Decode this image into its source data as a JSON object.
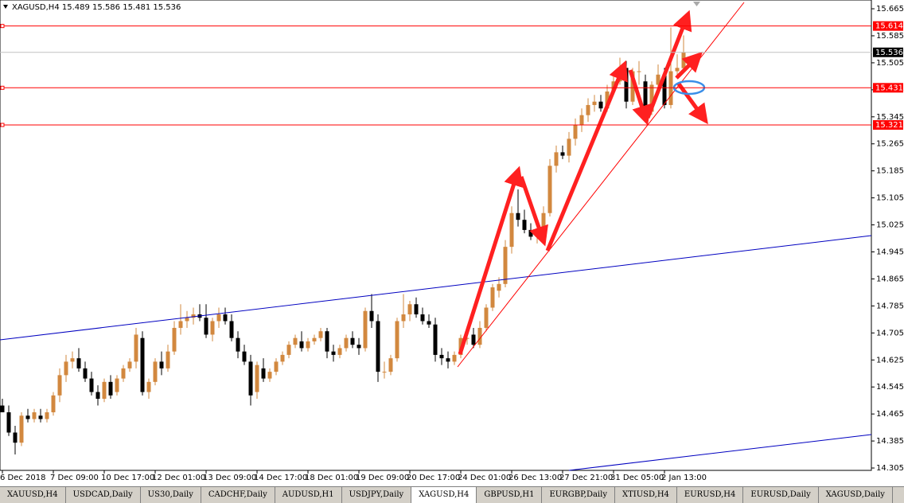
{
  "chart_data": {
    "type": "candlestick",
    "title": "XAGUSD,H4  15.489 15.586 15.481 15.536",
    "categories": [
      "6 Dec 2018",
      null,
      null,
      null,
      null,
      null,
      null,
      null,
      "7 Dec 09:00",
      null,
      null,
      null,
      null,
      null,
      null,
      null,
      "10 Dec 17:00",
      null,
      null,
      null,
      null,
      null,
      null,
      null,
      "12 Dec 01:00",
      null,
      null,
      null,
      null,
      null,
      null,
      null,
      "13 Dec 09:00",
      null,
      null,
      null,
      null,
      null,
      null,
      null,
      "14 Dec 17:00",
      null,
      null,
      null,
      null,
      null,
      null,
      null,
      "18 Dec 01:00",
      null,
      null,
      null,
      null,
      null,
      null,
      null,
      "19 Dec 09:00",
      null,
      null,
      null,
      null,
      null,
      null,
      null,
      "20 Dec 17:00",
      null,
      null,
      null,
      null,
      null,
      null,
      null,
      "24 Dec 01:00",
      null,
      null,
      null,
      null,
      null,
      null,
      null,
      "26 Dec 13:00",
      null,
      null,
      null,
      null,
      null,
      null,
      null,
      "27 Dec 21:00",
      null,
      null,
      null,
      null,
      null,
      null,
      null,
      "31 Dec 05:00",
      null,
      null,
      null,
      null,
      null,
      null,
      null,
      "2 Jan 13:00",
      null,
      null,
      null
    ],
    "open": [
      14.49,
      14.47,
      14.41,
      14.38,
      14.46,
      14.45,
      14.46,
      14.45,
      14.47,
      14.52,
      14.58,
      14.62,
      14.63,
      14.6,
      14.57,
      14.53,
      14.51,
      14.56,
      14.53,
      14.57,
      14.6,
      14.62,
      14.69,
      14.53,
      14.56,
      14.62,
      14.6,
      14.65,
      14.72,
      14.74,
      14.75,
      14.76,
      14.75,
      14.7,
      14.74,
      14.76,
      14.74,
      14.69,
      14.65,
      14.62,
      14.53,
      14.6,
      14.57,
      14.59,
      14.62,
      14.64,
      14.67,
      14.68,
      14.66,
      14.68,
      14.69,
      14.71,
      14.65,
      14.64,
      14.66,
      14.69,
      14.67,
      14.66,
      14.77,
      14.74,
      14.59,
      14.59,
      14.63,
      14.74,
      14.76,
      14.79,
      14.76,
      14.74,
      14.73,
      14.64,
      14.63,
      14.62,
      14.64,
      14.69,
      14.7,
      14.67,
      14.72,
      14.78,
      14.83,
      14.85,
      14.96,
      15.06,
      15.04,
      15.01,
      14.99,
      15.0,
      15.06,
      15.2,
      15.24,
      15.23,
      15.28,
      15.32,
      15.35,
      15.38,
      15.39,
      15.37,
      15.42,
      15.45,
      15.49,
      15.39,
      15.48,
      15.45,
      15.36,
      15.44,
      15.47,
      15.38,
      15.48,
      15.489
    ],
    "high": [
      14.51,
      14.49,
      14.43,
      14.47,
      14.48,
      14.48,
      14.48,
      14.48,
      14.53,
      14.6,
      14.64,
      14.65,
      14.66,
      14.62,
      14.59,
      14.55,
      14.57,
      14.58,
      14.58,
      14.61,
      14.63,
      14.72,
      14.71,
      14.57,
      14.63,
      14.65,
      14.67,
      14.74,
      14.79,
      14.77,
      14.78,
      14.79,
      14.79,
      14.75,
      14.78,
      14.78,
      14.76,
      14.71,
      14.67,
      14.64,
      14.62,
      14.63,
      14.6,
      14.63,
      14.65,
      14.68,
      14.7,
      14.71,
      14.69,
      14.7,
      14.72,
      14.72,
      14.67,
      14.67,
      14.7,
      14.71,
      14.69,
      14.78,
      14.82,
      14.76,
      14.62,
      14.64,
      14.75,
      14.82,
      14.8,
      14.81,
      14.78,
      14.76,
      14.75,
      14.66,
      14.65,
      14.65,
      14.7,
      14.72,
      14.72,
      14.74,
      14.79,
      14.85,
      14.87,
      14.98,
      15.08,
      15.13,
      15.07,
      15.03,
      15.02,
      15.08,
      15.22,
      15.26,
      15.26,
      15.3,
      15.34,
      15.37,
      15.4,
      15.41,
      15.41,
      15.44,
      15.47,
      15.52,
      15.51,
      15.49,
      15.51,
      15.47,
      15.45,
      15.5,
      15.49,
      15.61,
      15.53,
      15.586
    ],
    "low": [
      14.47,
      14.4,
      14.345,
      14.37,
      14.44,
      14.44,
      14.44,
      14.44,
      14.46,
      14.5,
      14.56,
      14.6,
      14.59,
      14.56,
      14.52,
      14.49,
      14.5,
      14.51,
      14.52,
      14.56,
      14.59,
      14.6,
      14.52,
      14.51,
      14.55,
      14.58,
      14.59,
      14.64,
      14.7,
      14.72,
      14.73,
      14.74,
      14.69,
      14.68,
      14.72,
      14.73,
      14.68,
      14.63,
      14.61,
      14.49,
      14.51,
      14.56,
      14.56,
      14.58,
      14.61,
      14.63,
      14.66,
      14.65,
      14.65,
      14.67,
      14.68,
      14.63,
      14.62,
      14.63,
      14.65,
      14.66,
      14.64,
      14.65,
      14.72,
      14.56,
      14.57,
      14.58,
      14.62,
      14.72,
      14.74,
      14.75,
      14.73,
      14.72,
      14.62,
      14.61,
      14.6,
      14.61,
      14.63,
      14.67,
      14.66,
      14.66,
      14.71,
      14.77,
      14.81,
      14.84,
      14.94,
      15.02,
      15.0,
      14.98,
      14.97,
      14.99,
      15.05,
      15.18,
      15.22,
      15.21,
      15.26,
      15.3,
      15.33,
      15.36,
      15.36,
      15.36,
      15.41,
      15.44,
      15.37,
      15.38,
      15.44,
      15.33,
      15.35,
      15.42,
      15.37,
      15.37,
      15.46,
      15.481
    ],
    "close": [
      14.47,
      14.41,
      14.38,
      14.46,
      14.45,
      14.47,
      14.45,
      14.47,
      14.52,
      14.58,
      14.62,
      14.63,
      14.6,
      14.57,
      14.53,
      14.51,
      14.56,
      14.52,
      14.57,
      14.6,
      14.62,
      14.7,
      14.53,
      14.56,
      14.62,
      14.6,
      14.65,
      14.72,
      14.74,
      14.75,
      14.76,
      14.75,
      14.7,
      14.74,
      14.76,
      14.74,
      14.69,
      14.65,
      14.62,
      14.52,
      14.61,
      14.57,
      14.59,
      14.62,
      14.64,
      14.67,
      14.69,
      14.66,
      14.68,
      14.69,
      14.71,
      14.65,
      14.64,
      14.66,
      14.69,
      14.67,
      14.66,
      14.77,
      14.74,
      14.59,
      14.59,
      14.63,
      14.74,
      14.76,
      14.79,
      14.76,
      14.74,
      14.73,
      14.64,
      14.63,
      14.62,
      14.64,
      14.69,
      14.69,
      14.67,
      14.72,
      14.78,
      14.84,
      14.85,
      14.96,
      15.06,
      15.04,
      15.01,
      14.99,
      15.0,
      15.06,
      15.2,
      15.24,
      15.23,
      15.28,
      15.32,
      15.35,
      15.38,
      15.39,
      15.37,
      15.42,
      15.45,
      15.49,
      15.39,
      15.48,
      15.48,
      15.36,
      15.44,
      15.47,
      15.38,
      15.48,
      15.49,
      15.536
    ],
    "up_color": "#d2883f",
    "down_color": "#000000",
    "ylim": [
      14.298,
      15.691
    ],
    "yticks": [
      15.665,
      15.585,
      15.505,
      15.425,
      15.345,
      15.265,
      15.185,
      15.105,
      15.025,
      14.945,
      14.865,
      14.785,
      14.705,
      14.625,
      14.545,
      14.465,
      14.385,
      14.305
    ],
    "hlines": [
      {
        "value": 15.614,
        "color": "#ff0000"
      },
      {
        "value": 15.431,
        "color": "#ff0000"
      },
      {
        "value": 15.321,
        "color": "#ff0000"
      }
    ],
    "current_price": 15.536
  },
  "tabs": [
    "XAUUSD,H4",
    "USDCAD,Daily",
    "US30,Daily",
    "CADCHF,Daily",
    "AUDUSD,H1",
    "USDJPY,Daily",
    "XAGUSD,H4",
    "GBPUSD,H1",
    "EURGBP,Daily",
    "XTIUSD,H4",
    "EURUSD,H4",
    "EURUSD,Daily",
    "XAGUSD,Daily"
  ],
  "active_tab": 6
}
